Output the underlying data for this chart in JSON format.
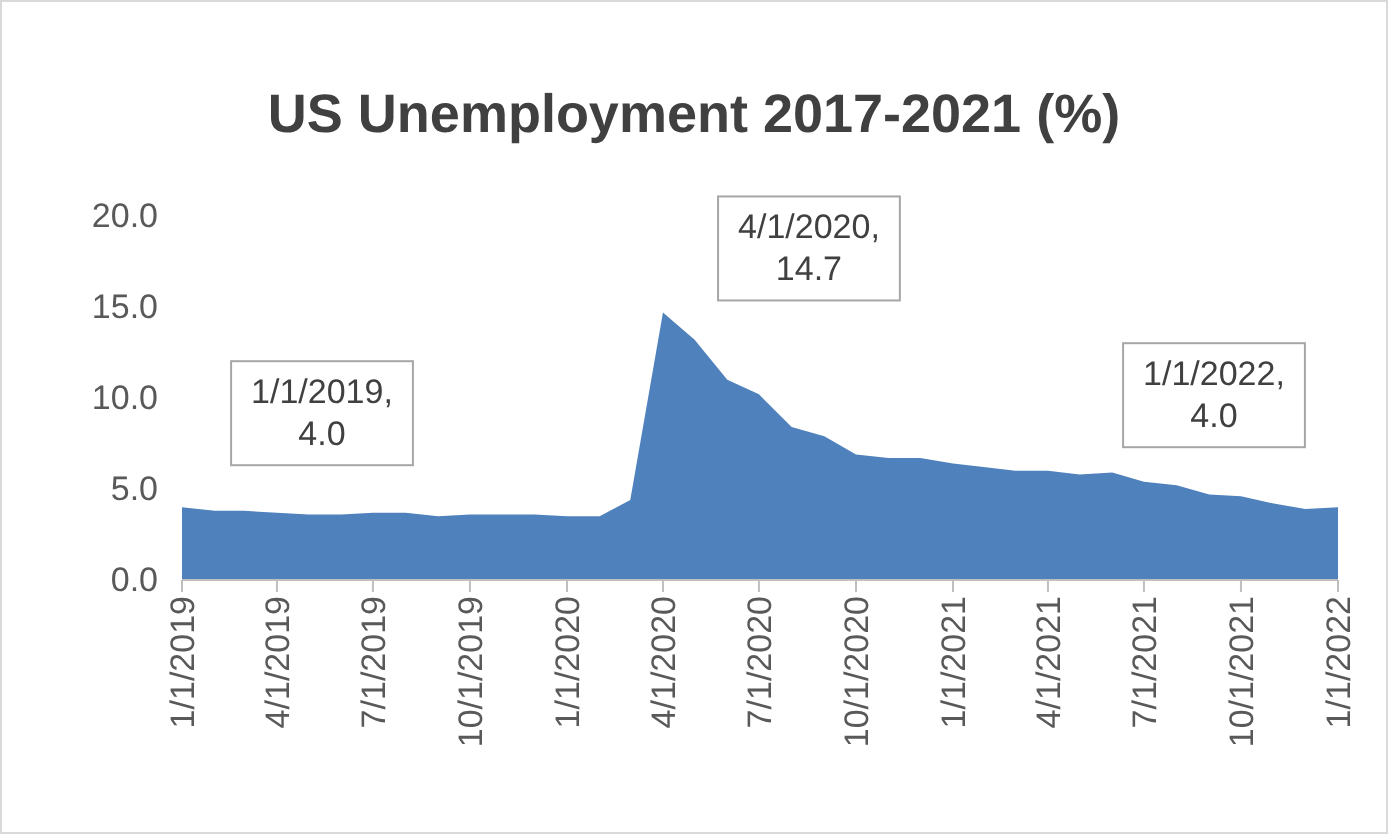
{
  "chart_data": {
    "type": "area",
    "title": "US Unemployment 2017-2021 (%)",
    "x": [
      "2019-01",
      "2019-02",
      "2019-03",
      "2019-04",
      "2019-05",
      "2019-06",
      "2019-07",
      "2019-08",
      "2019-09",
      "2019-10",
      "2019-11",
      "2019-12",
      "2020-01",
      "2020-02",
      "2020-03",
      "2020-04",
      "2020-05",
      "2020-06",
      "2020-07",
      "2020-08",
      "2020-09",
      "2020-10",
      "2020-11",
      "2020-12",
      "2021-01",
      "2021-02",
      "2021-03",
      "2021-04",
      "2021-05",
      "2021-06",
      "2021-07",
      "2021-08",
      "2021-09",
      "2021-10",
      "2021-11",
      "2021-12",
      "2022-01"
    ],
    "values": [
      4.0,
      3.8,
      3.8,
      3.7,
      3.6,
      3.6,
      3.7,
      3.7,
      3.5,
      3.6,
      3.6,
      3.6,
      3.5,
      3.5,
      4.4,
      14.7,
      13.2,
      11.0,
      10.2,
      8.4,
      7.9,
      6.9,
      6.7,
      6.7,
      6.4,
      6.2,
      6.0,
      6.0,
      5.8,
      5.9,
      5.4,
      5.2,
      4.7,
      4.6,
      4.2,
      3.9,
      4.0
    ],
    "color": "#4f81bd",
    "xlim": [
      "2019-01",
      "2022-01"
    ],
    "xticks": [
      {
        "value": "2019-01",
        "label": "1/1/2019"
      },
      {
        "value": "2019-04",
        "label": "4/1/2019"
      },
      {
        "value": "2019-07",
        "label": "7/1/2019"
      },
      {
        "value": "2019-10",
        "label": "10/1/2019"
      },
      {
        "value": "2020-01",
        "label": "1/1/2020"
      },
      {
        "value": "2020-04",
        "label": "4/1/2020"
      },
      {
        "value": "2020-07",
        "label": "7/1/2020"
      },
      {
        "value": "2020-10",
        "label": "10/1/2020"
      },
      {
        "value": "2021-01",
        "label": "1/1/2021"
      },
      {
        "value": "2021-04",
        "label": "4/1/2021"
      },
      {
        "value": "2021-07",
        "label": "7/1/2021"
      },
      {
        "value": "2021-10",
        "label": "10/1/2021"
      },
      {
        "value": "2022-01",
        "label": "1/1/2022"
      }
    ],
    "ylim": [
      0,
      20
    ],
    "yticks": [
      {
        "value": 0,
        "label": "0.0"
      },
      {
        "value": 5,
        "label": "5.0"
      },
      {
        "value": 10,
        "label": "10.0"
      },
      {
        "value": 15,
        "label": "15.0"
      },
      {
        "value": 20,
        "label": "20.0"
      }
    ],
    "grid": false,
    "annotations": [
      {
        "text": "1/1/2019, 4.0",
        "x": "2019-01",
        "y": 4.0
      },
      {
        "text": "4/1/2020, 14.7",
        "x": "2020-04",
        "y": 14.7
      },
      {
        "text": "1/1/2022, 4.0",
        "x": "2022-01",
        "y": 4.0
      }
    ]
  }
}
